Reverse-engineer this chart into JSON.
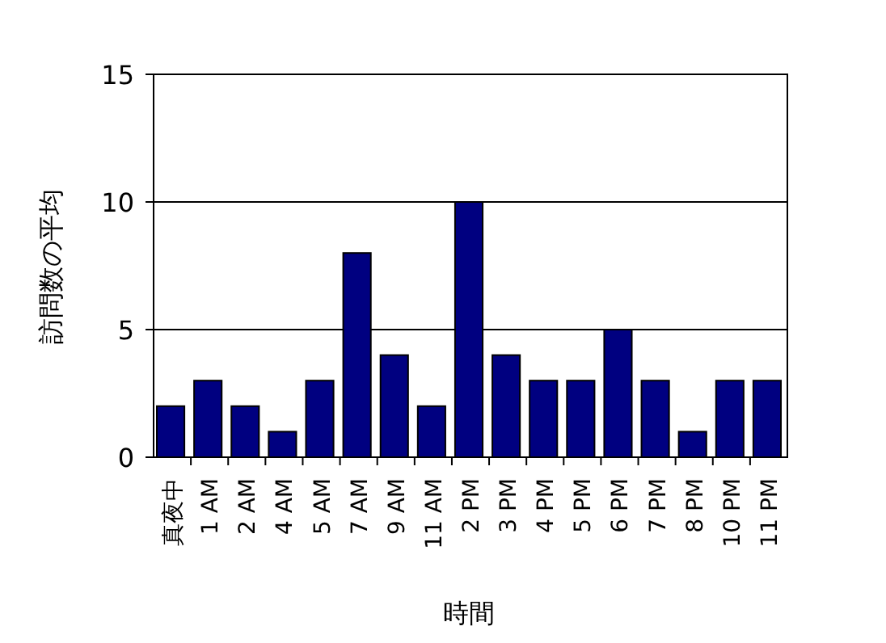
{
  "chart_data": {
    "type": "bar",
    "xlabel": "時間",
    "ylabel": "訪問数の平均",
    "categories": [
      "真夜中",
      "1 AM",
      "2 AM",
      "4 AM",
      "5 AM",
      "7 AM",
      "9 AM",
      "11 AM",
      "2 PM",
      "3 PM",
      "4 PM",
      "5 PM",
      "6 PM",
      "7 PM",
      "8 PM",
      "10 PM",
      "11 PM"
    ],
    "values": [
      2,
      3,
      2,
      1,
      3,
      8,
      4,
      2,
      10,
      4,
      3,
      3,
      5,
      3,
      1,
      3,
      3
    ],
    "color": "#000080",
    "ylim": [
      0,
      15
    ],
    "yticks": [
      0,
      5,
      10,
      15
    ],
    "grid": "y"
  }
}
